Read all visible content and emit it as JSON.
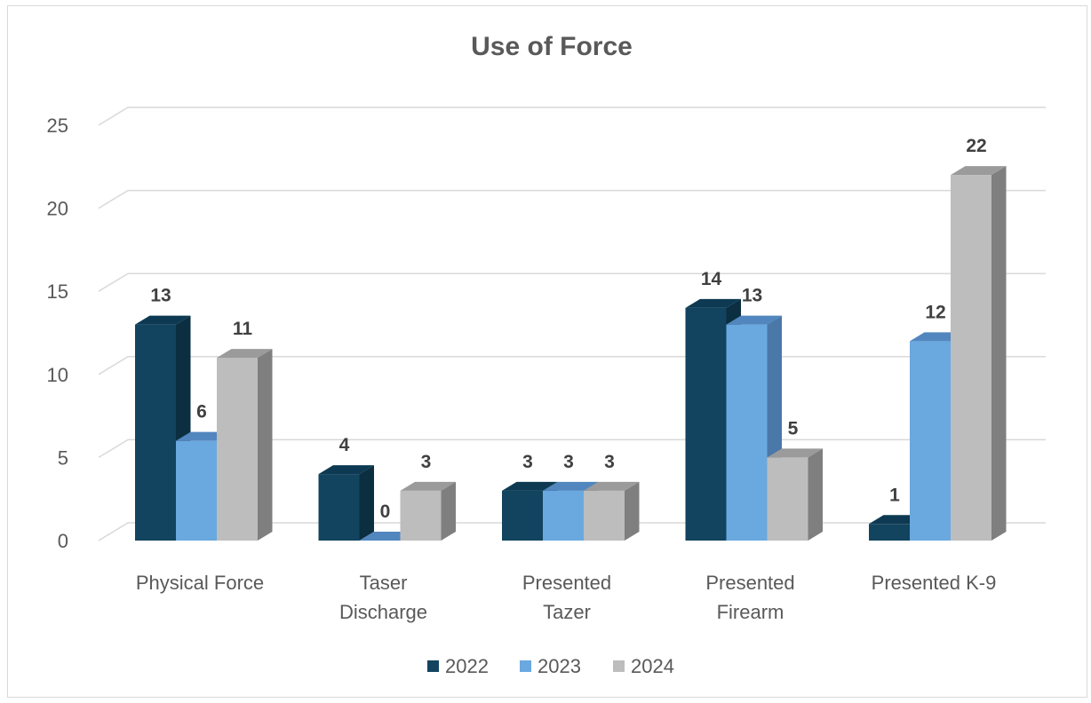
{
  "chart_data": {
    "type": "bar",
    "style": "3d-clustered-column",
    "title": "Use of Force",
    "categories": [
      [
        "Physical Force"
      ],
      [
        "Taser",
        "Discharge"
      ],
      [
        "Presented",
        "Tazer"
      ],
      [
        "Presented",
        "Firearm"
      ],
      [
        "Presented K-9"
      ]
    ],
    "series": [
      {
        "name": "2022",
        "color": "#12445f",
        "side_color": "#0b2e40",
        "top_color": "#0d3a52",
        "values": [
          13,
          4,
          3,
          14,
          1
        ]
      },
      {
        "name": "2023",
        "color": "#6aa8e0",
        "side_color": "#4a78a8",
        "top_color": "#5286be",
        "values": [
          6,
          0,
          3,
          13,
          12
        ]
      },
      {
        "name": "2024",
        "color": "#bdbdbd",
        "side_color": "#7f7f7f",
        "top_color": "#9b9b9b",
        "values": [
          11,
          3,
          3,
          5,
          22
        ]
      }
    ],
    "y_ticks": [
      0,
      5,
      10,
      15,
      20,
      25
    ],
    "ylim": [
      0,
      25
    ],
    "grid": true,
    "legend_position": "bottom",
    "data_labels": true
  }
}
